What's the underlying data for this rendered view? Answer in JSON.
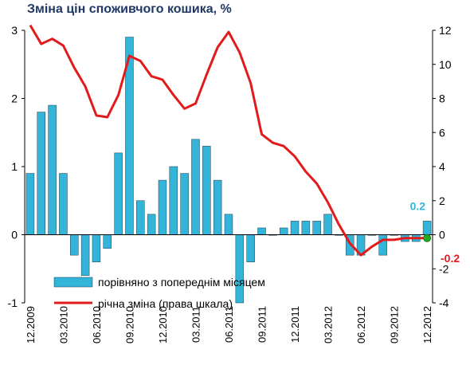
{
  "title": "Зміна цін споживчого кошика, %",
  "colors": {
    "bar": "#33b5d9",
    "bar_edge": "#1f3b52",
    "line": "#e31a1c",
    "end_point": "#22aa22",
    "label_positive": "#33b5d9",
    "label_negative": "#e31a1c"
  },
  "chart_data": {
    "type": "bar",
    "title": "Зміна цін споживчого кошика, %",
    "categories": [
      "12.2009",
      "01.2010",
      "02.2010",
      "03.2010",
      "04.2010",
      "05.2010",
      "06.2010",
      "07.2010",
      "08.2010",
      "09.2010",
      "10.2010",
      "11.2010",
      "12.2010",
      "01.2011",
      "02.2011",
      "03.2011",
      "04.2011",
      "05.2011",
      "06.2011",
      "07.2011",
      "08.2011",
      "09.2011",
      "10.2011",
      "11.2011",
      "12.2011",
      "01.2012",
      "02.2012",
      "03.2012",
      "04.2012",
      "05.2012",
      "06.2012",
      "07.2012",
      "08.2012",
      "09.2012",
      "10.2012",
      "11.2012",
      "12.2012"
    ],
    "x_tick_labels": [
      "12.2009",
      "03.2010",
      "06.2010",
      "09.2010",
      "12.2010",
      "03.2011",
      "06.2011",
      "09.2011",
      "12.2011",
      "03.2012",
      "06.2012",
      "09.2012",
      "12.2012"
    ],
    "series": [
      {
        "name": "порівняно з попереднім місяцем",
        "type": "bar",
        "axis": "left",
        "values": [
          0.9,
          1.8,
          1.9,
          0.9,
          -0.3,
          -0.6,
          -0.4,
          -0.2,
          1.2,
          2.9,
          0.5,
          0.3,
          0.8,
          1.0,
          0.9,
          1.4,
          1.3,
          0.8,
          0.3,
          -1.0,
          -0.4,
          0.1,
          0.0,
          0.1,
          0.2,
          0.2,
          0.2,
          0.3,
          0.0,
          -0.3,
          -0.3,
          0.0,
          -0.3,
          0.0,
          -0.1,
          -0.1,
          0.2
        ]
      },
      {
        "name": "річна зміна (права шкала)",
        "type": "line",
        "axis": "right",
        "values": [
          12.3,
          11.2,
          11.5,
          11.1,
          9.8,
          8.7,
          7.0,
          6.9,
          8.2,
          10.5,
          10.2,
          9.3,
          9.1,
          8.2,
          7.4,
          7.7,
          9.4,
          11.0,
          11.9,
          10.7,
          8.9,
          5.9,
          5.4,
          5.2,
          4.6,
          3.7,
          3.0,
          1.9,
          0.6,
          -0.5,
          -1.2,
          -0.7,
          -0.3,
          -0.3,
          -0.2,
          -0.2,
          -0.2
        ]
      }
    ],
    "y_left": {
      "ylim": [
        -1,
        3
      ],
      "ticks": [
        "-1",
        "0",
        "1",
        "2",
        "3"
      ]
    },
    "y_right": {
      "ylim": [
        -4,
        12
      ],
      "ticks": [
        "-4",
        "-2",
        "0",
        "2",
        "4",
        "6",
        "8",
        "10",
        "12"
      ]
    },
    "annotations": [
      {
        "text": "0.2",
        "series": "bar",
        "value": 0.2
      },
      {
        "text": "-0.2",
        "series": "line",
        "value": -0.2
      }
    ],
    "legend": {
      "placement": "bottom-center",
      "entries": [
        "порівняно з попереднім місяцем",
        "річна зміна (права шкала)"
      ]
    },
    "grid": false
  }
}
